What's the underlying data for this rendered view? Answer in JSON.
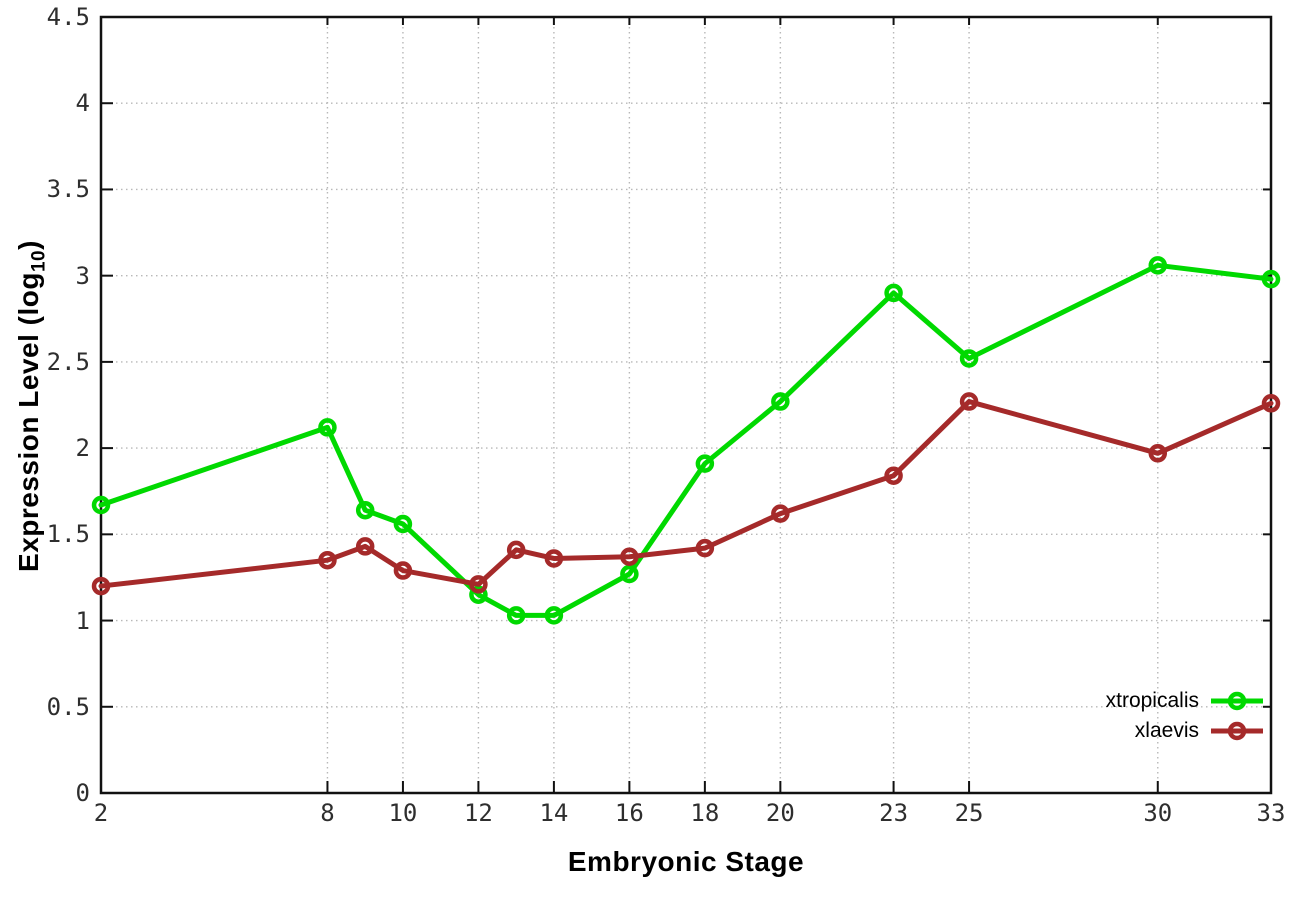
{
  "chart_data": {
    "type": "line",
    "title": "",
    "xlabel": "Embryonic Stage",
    "ylabel": "Expression Level (log10)",
    "ylabel_parts": {
      "main": "Expression Level (log",
      "sub": "10",
      "close": ")"
    },
    "x": [
      2,
      8,
      9,
      10,
      12,
      13,
      14,
      16,
      18,
      20,
      23,
      25,
      30,
      33
    ],
    "series": [
      {
        "name": "xtropicalis",
        "color": "#00d900",
        "values": [
          1.67,
          2.12,
          1.64,
          1.56,
          1.15,
          1.03,
          1.03,
          1.27,
          1.91,
          2.27,
          2.9,
          2.52,
          3.06,
          2.98
        ]
      },
      {
        "name": "xlaevis",
        "color": "#a52a2a",
        "values": [
          1.2,
          1.35,
          1.43,
          1.29,
          1.21,
          1.41,
          1.36,
          1.37,
          1.42,
          1.62,
          1.84,
          2.27,
          1.97,
          2.26
        ]
      }
    ],
    "xlim": [
      2,
      33
    ],
    "ylim": [
      0,
      4.5
    ],
    "xtick_values": [
      2,
      8,
      10,
      12,
      14,
      16,
      18,
      20,
      23,
      25,
      30,
      33
    ],
    "xtick_labels": [
      "2",
      "8",
      "10",
      "12",
      "14",
      "16",
      "18",
      "20",
      "23",
      "25",
      "30",
      "33"
    ],
    "ytick_values": [
      0,
      0.5,
      1,
      1.5,
      2,
      2.5,
      3,
      3.5,
      4,
      4.5
    ],
    "ytick_labels": [
      "0",
      "0.5",
      "1",
      "1.5",
      "2",
      "2.5",
      "3",
      "3.5",
      "4",
      "4.5"
    ],
    "grid": true,
    "legend_position": "bottom-right",
    "marker": "open-circle"
  },
  "colors": {
    "background": "#ffffff",
    "border": "#111111",
    "grid": "#b8b8b8",
    "tick_text": "#2e2e2e",
    "series_green": "#00d900",
    "series_red": "#a52a2a"
  }
}
